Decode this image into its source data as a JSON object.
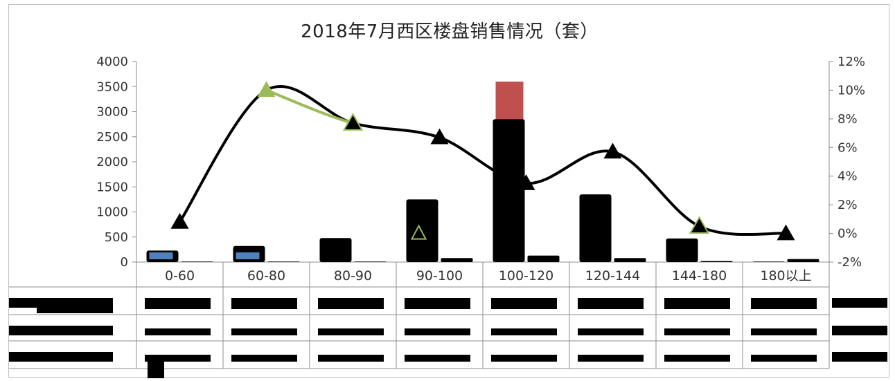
{
  "chart_data": {
    "type": "bar",
    "title": "2018年7月西区楼盘销售情况（套）",
    "categories": [
      "0-60",
      "60-80",
      "80-90",
      "90-100",
      "100-120",
      "120-144",
      "144-180",
      "180以上"
    ],
    "series": [
      {
        "name": "",
        "type": "bar",
        "axis": "left",
        "color": "#000000",
        "values": [
          230,
          320,
          480,
          1250,
          2850,
          1350,
          470,
          10
        ]
      },
      {
        "name": "",
        "type": "bar",
        "axis": "left",
        "color": "#c0504d",
        "values": [
          0,
          0,
          0,
          0,
          3600,
          0,
          0,
          0
        ]
      },
      {
        "name": "",
        "type": "bar",
        "axis": "left",
        "color": "#000000",
        "values": [
          10,
          10,
          10,
          80,
          130,
          80,
          20,
          60
        ]
      },
      {
        "name": "",
        "type": "line",
        "axis": "right",
        "color": "#000000",
        "values": [
          0.008,
          0.1,
          0.077,
          0.067,
          0.035,
          0.057,
          0.005,
          0.0
        ]
      }
    ],
    "ylim": [
      0,
      4000
    ],
    "y_ticks": [
      "0",
      "500",
      "1000",
      "1500",
      "2000",
      "2500",
      "3000",
      "3500",
      "4000"
    ],
    "y2lim": [
      -0.02,
      0.12
    ],
    "y2_ticks": [
      "-2%",
      "0%",
      "2%",
      "4%",
      "6%",
      "8%",
      "10%",
      "12%"
    ],
    "grid": false,
    "legend": "none"
  }
}
